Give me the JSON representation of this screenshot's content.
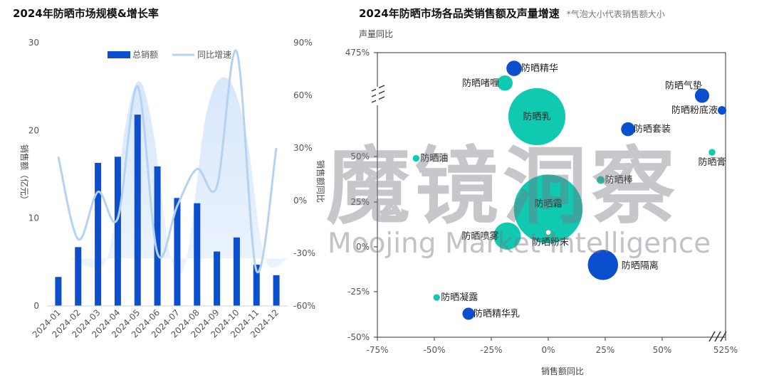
{
  "chart_data": [
    {
      "type": "bar",
      "title": "2024年防晒市场规模&增长率",
      "categories": [
        "2024-01",
        "2024-02",
        "2024-03",
        "2024-04",
        "2024-05",
        "2024-06",
        "2024-07",
        "2024-08",
        "2024-09",
        "2024-10",
        "2024-11",
        "2024-12"
      ],
      "series": [
        {
          "name": "总销额",
          "kind": "bar",
          "axis": "left",
          "values": [
            3.3,
            6.7,
            16.3,
            17.0,
            21.8,
            15.9,
            12.3,
            11.7,
            6.2,
            7.8,
            4.7,
            3.5
          ]
        },
        {
          "name": "同比增速",
          "kind": "line",
          "axis": "right",
          "values": [
            25,
            -22,
            5,
            -10,
            65,
            -30,
            -3,
            18,
            8,
            85,
            -40,
            30
          ]
        }
      ],
      "ylabel": "销售额（亿元）",
      "y2label": "销售额同比",
      "ylim": [
        0,
        30
      ],
      "y2lim": [
        -60,
        90
      ],
      "yticks": [
        "0",
        "10",
        "20",
        "30"
      ],
      "y2ticks": [
        "-60%",
        "-30%",
        "0%",
        "30%",
        "60%",
        "90%"
      ],
      "legend": "top"
    },
    {
      "type": "scatter",
      "title": "2024年防晒市场各品类销售额及声量增速",
      "note": "*气泡大小代表销售额大小",
      "xlabel": "销售额同比",
      "ylabel": "声量同比",
      "xticks": [
        "-75%",
        "-50%",
        "-25%",
        "0%",
        "25%",
        "50%",
        "525%"
      ],
      "yticks": [
        "-50%",
        "-25%",
        "0%",
        "25%",
        "50%",
        "475%"
      ],
      "points": [
        {
          "label": "防晒精华",
          "x": -15,
          "y": 92,
          "size": 0.16,
          "color": "#0b4fcf"
        },
        {
          "label": "防晒啫喱",
          "x": -19,
          "y": 85,
          "size": 0.16,
          "color": "#10c9b1"
        },
        {
          "label": "防晒乳",
          "x": -5,
          "y": 69,
          "size": 2.2,
          "color": "#10c9b1"
        },
        {
          "label": "防晒气垫",
          "x": 70,
          "y": 79,
          "size": 0.14,
          "color": "#0b4fcf"
        },
        {
          "label": "防晒粉底液",
          "x": 80,
          "y": 72,
          "size": 0.05,
          "color": "#0b4fcf"
        },
        {
          "label": "防晒套装",
          "x": 35,
          "y": 63,
          "size": 0.13,
          "color": "#0b4fcf"
        },
        {
          "label": "防晒油",
          "x": -58,
          "y": 49,
          "size": 0.03,
          "color": "#10c9b1"
        },
        {
          "label": "防晒膏",
          "x": 75,
          "y": 52,
          "size": 0.03,
          "color": "#10c9b1"
        },
        {
          "label": "防晒棒",
          "x": 23,
          "y": 37,
          "size": 0.04,
          "color": "#10c9b1"
        },
        {
          "label": "防晒霜",
          "x": 0,
          "y": 21,
          "size": 3.2,
          "color": "#10c9b1"
        },
        {
          "label": "防晒喷雾",
          "x": -18,
          "y": 6,
          "size": 0.5,
          "color": "#10c9b1"
        },
        {
          "label": "防晒粉末",
          "x": 0,
          "y": 8,
          "size": 0.02,
          "color": "#ffffff"
        },
        {
          "label": "防晒隔离",
          "x": 24,
          "y": -10,
          "size": 0.62,
          "color": "#0b4fcf"
        },
        {
          "label": "防晒凝露",
          "x": -49,
          "y": -28,
          "size": 0.03,
          "color": "#10c9b1"
        },
        {
          "label": "防晒精华乳",
          "x": -35,
          "y": -37,
          "size": 0.1,
          "color": "#0b4fcf"
        }
      ]
    }
  ],
  "watermark": {
    "cn": "魔镜洞察",
    "en": "Moojing Market Intelligence"
  },
  "colors": {
    "bar": "#0b4fcf",
    "line": "#b4d3f3",
    "area": "#dbe9fb",
    "blue_bubble": "#0b4fcf",
    "teal_bubble": "#10c9b1"
  }
}
